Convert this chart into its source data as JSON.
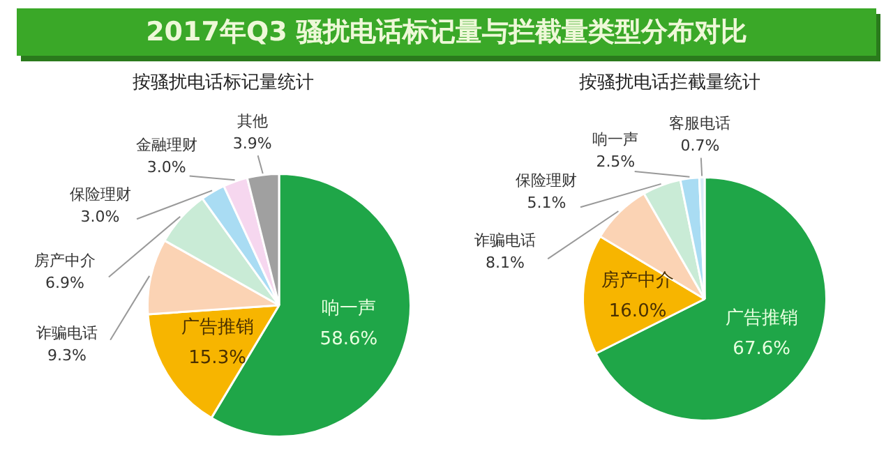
{
  "chart_data": [
    {
      "type": "pie",
      "title": "2017年Q3  骚扰电话标记量与拦截量类型分布对比",
      "subtitle": "按骚扰电话标记量统计",
      "categories": [
        "响一声",
        "广告推销",
        "诈骗电话",
        "房产中介",
        "保险理财",
        "金融理财",
        "其他"
      ],
      "values": [
        58.6,
        15.3,
        9.3,
        6.9,
        3.0,
        3.0,
        3.9
      ],
      "value_labels": [
        "58.6%",
        "15.3%",
        "9.3%",
        "6.9%",
        "3.0%",
        "3.0%",
        "3.9%"
      ],
      "colors": [
        "#1fa648",
        "#f7b500",
        "#fbd3b4",
        "#c9ebd6",
        "#a9dcf3",
        "#f6d7ef",
        "#a0a0a0"
      ]
    },
    {
      "type": "pie",
      "subtitle": "按骚扰电话拦截量统计",
      "categories": [
        "广告推销",
        "房产中介",
        "诈骗电话",
        "保险理财",
        "响一声",
        "客服电话"
      ],
      "values": [
        67.6,
        16.0,
        8.1,
        5.1,
        2.5,
        0.7
      ],
      "value_labels": [
        "67.6%",
        "16.0%",
        "8.1%",
        "5.1%",
        "2.5%",
        "0.7%"
      ],
      "colors": [
        "#1fa648",
        "#f7b500",
        "#fbd3b4",
        "#c9ebd6",
        "#a9dcf3",
        "#d8ecf7"
      ]
    }
  ]
}
